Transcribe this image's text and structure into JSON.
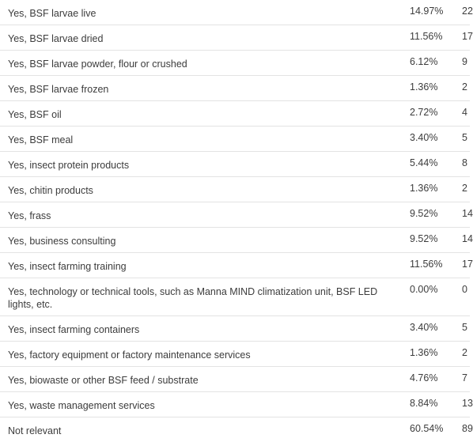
{
  "rows": [
    {
      "label": "Yes, BSF larvae live",
      "percent": "14.97%",
      "count": "22"
    },
    {
      "label": "Yes, BSF larvae dried",
      "percent": "11.56%",
      "count": "17"
    },
    {
      "label": "Yes, BSF larvae powder, flour or crushed",
      "percent": "6.12%",
      "count": "9"
    },
    {
      "label": "Yes, BSF larvae frozen",
      "percent": "1.36%",
      "count": "2"
    },
    {
      "label": "Yes, BSF oil",
      "percent": "2.72%",
      "count": "4"
    },
    {
      "label": "Yes, BSF meal",
      "percent": "3.40%",
      "count": "5"
    },
    {
      "label": "Yes, insect protein products",
      "percent": "5.44%",
      "count": "8"
    },
    {
      "label": "Yes, chitin products",
      "percent": "1.36%",
      "count": "2"
    },
    {
      "label": "Yes, frass",
      "percent": "9.52%",
      "count": "14"
    },
    {
      "label": "Yes, business consulting",
      "percent": "9.52%",
      "count": "14"
    },
    {
      "label": "Yes, insect farming training",
      "percent": "11.56%",
      "count": "17"
    },
    {
      "label": "Yes, technology or technical tools, such as Manna MIND climatization unit, BSF LED lights, etc.",
      "percent": "0.00%",
      "count": "0"
    },
    {
      "label": "Yes, insect farming containers",
      "percent": "3.40%",
      "count": "5"
    },
    {
      "label": "Yes, factory equipment or factory maintenance services",
      "percent": "1.36%",
      "count": "2"
    },
    {
      "label": "Yes, biowaste or other BSF feed / substrate",
      "percent": "4.76%",
      "count": "7"
    },
    {
      "label": "Yes, waste management services",
      "percent": "8.84%",
      "count": "13"
    },
    {
      "label": "Not relevant",
      "percent": "60.54%",
      "count": "89"
    }
  ]
}
